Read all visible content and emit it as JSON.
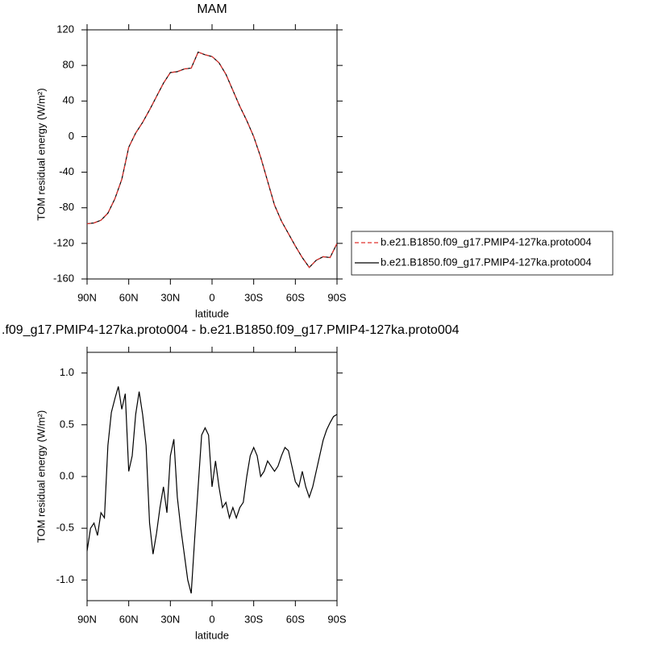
{
  "chart_data": [
    {
      "type": "line",
      "title": "MAM",
      "xlabel": "latitude",
      "ylabel": "TOM residual energy (W/m²)",
      "x": [
        90,
        85,
        80,
        75,
        70,
        65,
        60,
        55,
        50,
        45,
        40,
        35,
        30,
        25,
        20,
        15,
        10,
        5,
        0,
        -5,
        -10,
        -15,
        -20,
        -25,
        -30,
        -35,
        -40,
        -45,
        -50,
        -55,
        -60,
        -65,
        -70,
        -75,
        -80,
        -85,
        -90
      ],
      "series": [
        {
          "name": "b.e21.B1850.f09_g17.PMIP4-127ka.proto004",
          "color": "#000000",
          "line_style": "solid",
          "values": [
            -98,
            -97,
            -94,
            -86,
            -70,
            -48,
            -12,
            4,
            16,
            30,
            45,
            60,
            72,
            73,
            76,
            77,
            95,
            92,
            90,
            83,
            70,
            52,
            34,
            18,
            0,
            -23,
            -50,
            -77,
            -95,
            -109,
            -123,
            -136,
            -147,
            -139,
            -135,
            -136,
            -120
          ]
        },
        {
          "name": "b.e21.B1850.f09_g17.PMIP4-127ka.proto004",
          "color": "#e0302c",
          "line_style": "dashed",
          "values": [
            -98,
            -97,
            -94,
            -86,
            -70,
            -48,
            -12,
            4,
            16,
            30,
            45,
            60,
            72,
            73,
            76,
            77,
            95,
            92,
            90,
            83,
            70,
            52,
            34,
            18,
            0,
            -23,
            -50,
            -77,
            -95,
            -109,
            -123,
            -136,
            -147,
            -139,
            -135,
            -136,
            -120
          ]
        }
      ],
      "xlim": [
        90,
        -90
      ],
      "xticks": [
        {
          "value": 90,
          "label": "90N"
        },
        {
          "value": 60,
          "label": "60N"
        },
        {
          "value": 30,
          "label": "30N"
        },
        0,
        {
          "value": -30,
          "label": "30S"
        },
        {
          "value": -60,
          "label": "60S"
        },
        {
          "value": -90,
          "label": "90S"
        }
      ],
      "ylim": [
        -160,
        120
      ],
      "yticks": [
        -160,
        -120,
        -80,
        -40,
        0,
        40,
        80,
        120
      ],
      "legend": "right"
    },
    {
      "type": "line",
      "title": ".f09_g17.PMIP4-127ka.proto004 - b.e21.B1850.f09_g17.PMIP4-127ka.proto004",
      "xlabel": "latitude",
      "ylabel": "TOM residual energy (W/m²)",
      "x": [
        90,
        87.5,
        85,
        82.5,
        80,
        77.5,
        75,
        72.5,
        70,
        67.5,
        65,
        62.5,
        60,
        57.5,
        55,
        52.5,
        50,
        47.5,
        45,
        42.5,
        40,
        37.5,
        35,
        32.5,
        30,
        27.5,
        25,
        22.5,
        20,
        17.5,
        15,
        12.5,
        10,
        7.5,
        5,
        2.5,
        0,
        -2.5,
        -5,
        -7.5,
        -10,
        -12.5,
        -15,
        -17.5,
        -20,
        -22.5,
        -25,
        -27.5,
        -30,
        -32.5,
        -35,
        -37.5,
        -40,
        -42.5,
        -45,
        -47.5,
        -50,
        -52.5,
        -55,
        -57.5,
        -60,
        -62.5,
        -65,
        -67.5,
        -70,
        -72.5,
        -75,
        -77.5,
        -80,
        -82.5,
        -85,
        -87.5,
        -90
      ],
      "series": [
        {
          "color": "#000000",
          "line_style": "solid",
          "values": [
            -0.72,
            -0.5,
            -0.45,
            -0.57,
            -0.35,
            -0.4,
            0.3,
            0.62,
            0.75,
            0.87,
            0.65,
            0.8,
            0.05,
            0.2,
            0.6,
            0.82,
            0.6,
            0.3,
            -0.45,
            -0.75,
            -0.55,
            -0.3,
            -0.1,
            -0.35,
            0.2,
            0.36,
            -0.2,
            -0.5,
            -0.75,
            -1.0,
            -1.13,
            -0.6,
            -0.1,
            0.4,
            0.47,
            0.4,
            -0.1,
            0.15,
            -0.1,
            -0.3,
            -0.25,
            -0.4,
            -0.3,
            -0.4,
            -0.3,
            -0.25,
            0,
            0.2,
            0.28,
            0.2,
            0,
            0.05,
            0.15,
            0.1,
            0.05,
            0.1,
            0.2,
            0.28,
            0.25,
            0.1,
            -0.05,
            -0.1,
            0.05,
            -0.1,
            -0.2,
            -0.1,
            0.05,
            0.2,
            0.35,
            0.45,
            0.52,
            0.58,
            0.6
          ]
        }
      ],
      "xlim": [
        90,
        -90
      ],
      "xticks": [
        {
          "value": 90,
          "label": "90N"
        },
        {
          "value": 60,
          "label": "60N"
        },
        {
          "value": 30,
          "label": "30N"
        },
        0,
        {
          "value": -30,
          "label": "30S"
        },
        {
          "value": -60,
          "label": "60S"
        },
        {
          "value": -90,
          "label": "90S"
        }
      ],
      "ylim": [
        -1.2,
        1.2
      ],
      "yticks": [
        {
          "value": -1,
          "label": "-1.0"
        },
        -0.5,
        {
          "value": 0,
          "label": "0.0"
        },
        0.5,
        {
          "value": 1,
          "label": "1.0"
        }
      ]
    }
  ]
}
